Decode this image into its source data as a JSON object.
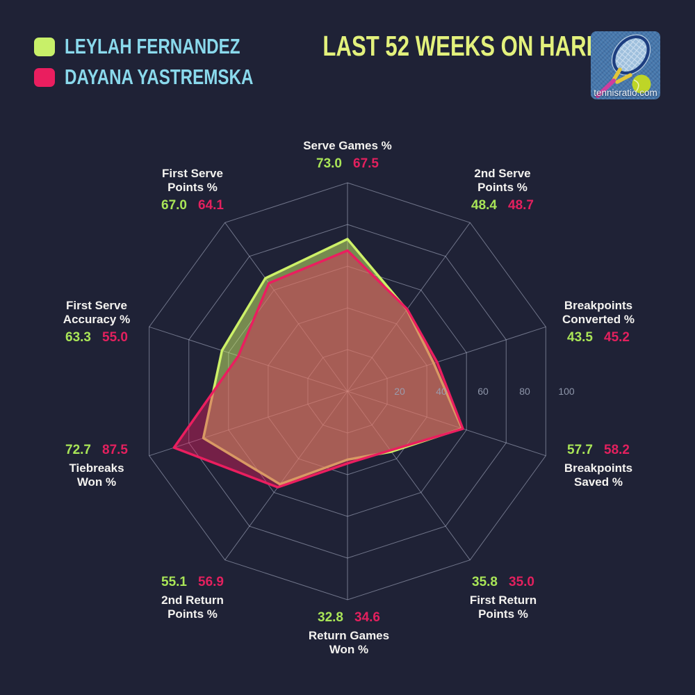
{
  "header": {
    "title": "LAST 52 WEEKS ON HARD",
    "legend": [
      {
        "name": "LEYLAH FERNANDEZ",
        "color": "#c8f069"
      },
      {
        "name": "DAYANA YASTREMSKA",
        "color": "#ea1e5f"
      }
    ],
    "logo_text": "tennisratio.com"
  },
  "chart_data": {
    "type": "radar",
    "title": "Last 52 weeks on hard",
    "range": [
      0,
      100
    ],
    "grid": true,
    "radial_ticks": [
      "20",
      "40",
      "60",
      "80",
      "100"
    ],
    "categories": [
      "Serve Games %",
      "2nd Serve Points %",
      "Breakpoints Converted %",
      "Breakpoints Saved %",
      "First Return Points %",
      "Return Games Won %",
      "2nd Return Points %",
      "Tiebreaks Won %",
      "First Serve Accuracy %",
      "First Serve Points %"
    ],
    "series": [
      {
        "name": "Leylah Fernandez",
        "color": "#cdf168",
        "value_color": "#a9e557",
        "values": [
          73.0,
          48.4,
          43.5,
          57.7,
          35.8,
          32.8,
          55.1,
          72.7,
          63.3,
          67.0
        ]
      },
      {
        "name": "Dayana Yastremska",
        "color": "#ea1e5f",
        "value_color": "#e3205e",
        "values": [
          67.5,
          48.7,
          45.2,
          58.2,
          35.0,
          34.6,
          56.9,
          87.5,
          55.0,
          64.1
        ]
      }
    ],
    "axes": [
      {
        "label": "Serve Games %",
        "a": "73.0",
        "b": "67.5"
      },
      {
        "label": "2nd Serve\nPoints %",
        "a": "48.4",
        "b": "48.7"
      },
      {
        "label": "Breakpoints\nConverted %",
        "a": "43.5",
        "b": "45.2"
      },
      {
        "label": "Breakpoints\nSaved %",
        "a": "57.7",
        "b": "58.2"
      },
      {
        "label": "First Return\nPoints %",
        "a": "35.8",
        "b": "35.0"
      },
      {
        "label": "Return Games\nWon %",
        "a": "32.8",
        "b": "34.6"
      },
      {
        "label": "2nd Return\nPoints %",
        "a": "55.1",
        "b": "56.9"
      },
      {
        "label": "Tiebreaks\nWon %",
        "a": "72.7",
        "b": "87.5"
      },
      {
        "label": "First Serve\nAccuracy %",
        "a": "63.3",
        "b": "55.0"
      },
      {
        "label": "First Serve\nPoints %",
        "a": "67.0",
        "b": "64.1"
      }
    ],
    "style": {
      "background": "#1f2236",
      "grid_color": "rgba(193,200,222,0.5)",
      "tick_text_color": "#9aa2b6",
      "fill_opacities": [
        0.5,
        0.42
      ]
    }
  }
}
